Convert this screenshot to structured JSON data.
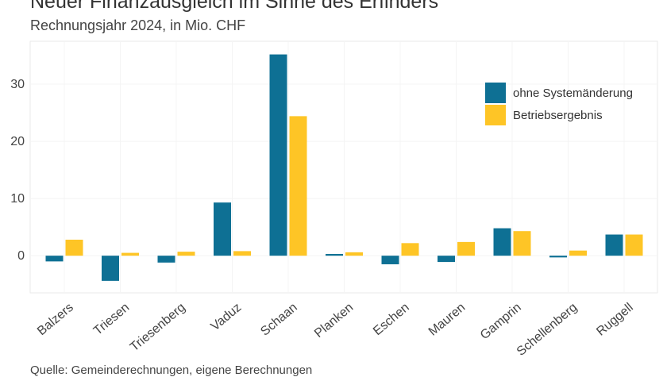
{
  "header": {
    "title": "Neuer Finanzausgleich im Sinne des Erfinders",
    "subtitle": "Rechnungsjahr 2024, in Mio. CHF"
  },
  "footer": {
    "source": "Quelle: Gemeinderechnungen, eigene Berechnungen"
  },
  "colors": {
    "series1": "#0e7094",
    "series2": "#fec526",
    "panel_border": "#eaeaea",
    "grid": "#f4f4f4"
  },
  "chart_data": {
    "type": "bar",
    "title": "Neuer Finanzausgleich im Sinne des Erfinders",
    "subtitle": "Rechnungsjahr 2024, in Mio. CHF",
    "xlabel": "",
    "ylabel": "",
    "categories": [
      "Balzers",
      "Triesen",
      "Triesenberg",
      "Vaduz",
      "Schaan",
      "Planken",
      "Eschen",
      "Mauren",
      "Gamprin",
      "Schellenberg",
      "Ruggell"
    ],
    "series": [
      {
        "name": "ohne Systemänderung",
        "values": [
          -1.0,
          -4.4,
          -1.2,
          9.3,
          35.2,
          0.3,
          -1.5,
          -1.1,
          4.8,
          -0.3,
          3.7
        ]
      },
      {
        "name": "Betriebsergebnis",
        "values": [
          2.8,
          0.5,
          0.7,
          0.8,
          24.4,
          0.6,
          2.2,
          2.4,
          4.3,
          0.9,
          3.7
        ]
      }
    ],
    "ylim": [
      -6.5,
      37.5
    ],
    "yticks": [
      0,
      10,
      20,
      30
    ],
    "legend": "top-right",
    "grid": true
  }
}
